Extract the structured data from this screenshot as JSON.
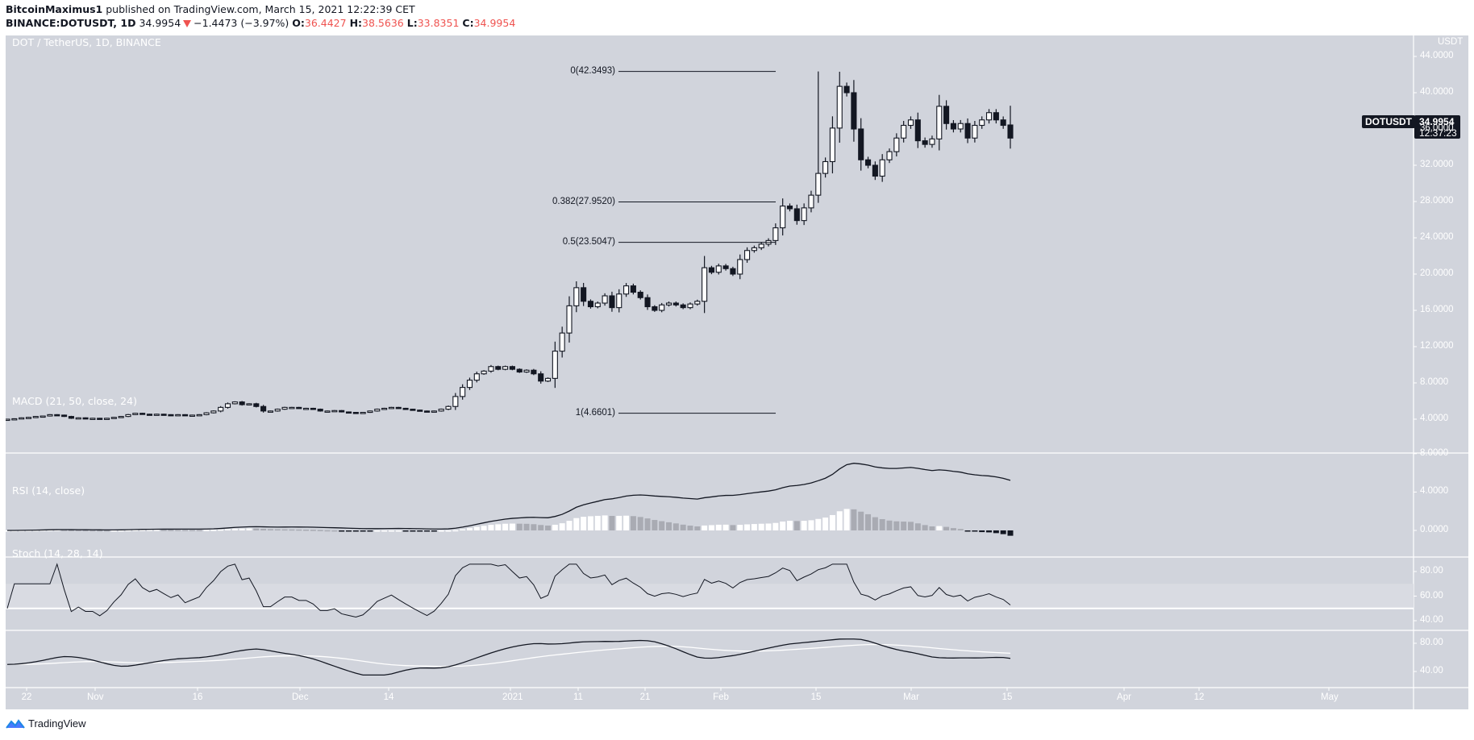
{
  "header": {
    "author": "BitcoinMaximus1",
    "published_text": "published on TradingView.com, March 15, 2021 12:22:39 CET",
    "symbol_line": "BINANCE:DOTUSDT, 1D",
    "last": "34.9954",
    "change": "−1.4473 (−3.97%)",
    "o_label": "O:",
    "o": "36.4427",
    "h_label": "H:",
    "h": "38.5636",
    "l_label": "L:",
    "l": "33.8351",
    "c_label": "C:",
    "c": "34.9954"
  },
  "colors": {
    "background": "#d1d4dc",
    "down": "#131722",
    "up": "#ffffff",
    "change_red": "#ef5350",
    "hist_light": "#ffffff",
    "hist_gray": "#a9abb3"
  },
  "main_pane": {
    "title": "DOT / TetherUS, 1D, BINANCE",
    "axis_unit": "USDT",
    "last_symbol": "DOTUSDT",
    "last_price": "34.9954",
    "countdown": "12:37:23"
  },
  "macd_pane": {
    "title": "MACD (21, 50, close, 24)",
    "ticks": [
      "8.0000",
      "4.0000",
      "0.0000"
    ]
  },
  "rsi_pane": {
    "title": "RSI (14, close)",
    "ticks": [
      "80.00",
      "60.00",
      "40.00"
    ]
  },
  "stoch_pane": {
    "title": "Stoch (14, 28, 14)",
    "ticks": [
      "80.00",
      "40.00"
    ]
  },
  "footer": {
    "brand": "TradingView"
  },
  "chart_data": {
    "type": "candlestick",
    "title": "DOT / TetherUS, 1D, BINANCE",
    "ylabel": "USDT",
    "ylim": [
      2,
      45
    ],
    "y_ticks": [
      "44.0000",
      "40.0000",
      "36.0000",
      "32.0000",
      "28.0000",
      "24.0000",
      "20.0000",
      "16.0000",
      "12.0000",
      "8.0000",
      "4.0000"
    ],
    "x_ticks": [
      "22",
      "Nov",
      "16",
      "Dec",
      "14",
      "2021",
      "11",
      "21",
      "Feb",
      "15",
      "Mar",
      "15",
      "Apr",
      "12",
      "May"
    ],
    "fib_levels": [
      {
        "label": "0(42.3493)",
        "value": 42.3493
      },
      {
        "label": "0.382(27.9520)",
        "value": 27.952
      },
      {
        "label": "0.5(23.5047)",
        "value": 23.5047
      },
      {
        "label": "1(4.6601)",
        "value": 4.6601
      }
    ],
    "closes_approx": [
      4.0,
      4.05,
      4.15,
      4.2,
      4.3,
      4.35,
      4.5,
      4.45,
      4.3,
      4.1,
      4.15,
      4.1,
      4.1,
      4.05,
      4.1,
      4.2,
      4.3,
      4.5,
      4.65,
      4.55,
      4.5,
      4.55,
      4.5,
      4.45,
      4.5,
      4.4,
      4.45,
      4.5,
      4.7,
      4.9,
      5.3,
      5.7,
      5.9,
      5.6,
      5.7,
      5.4,
      4.9,
      4.9,
      5.1,
      5.3,
      5.3,
      5.2,
      5.2,
      5.1,
      4.9,
      4.9,
      4.95,
      4.8,
      4.75,
      4.7,
      4.75,
      4.9,
      5.1,
      5.2,
      5.3,
      5.2,
      5.1,
      5.0,
      4.9,
      4.8,
      4.9,
      5.1,
      5.4,
      6.5,
      7.5,
      8.3,
      9.0,
      9.3,
      9.8,
      9.5,
      9.8,
      9.5,
      9.2,
      9.4,
      9.0,
      8.2,
      8.5,
      11.5,
      13.5,
      16.5,
      18.5,
      17.0,
      16.4,
      16.8,
      17.6,
      16.3,
      17.8,
      18.7,
      18.0,
      17.4,
      16.4,
      16.0,
      16.6,
      16.8,
      16.6,
      16.3,
      16.7,
      17.0,
      20.7,
      20.2,
      20.9,
      20.6,
      20.0,
      21.6,
      22.6,
      22.9,
      23.3,
      23.7,
      25.1,
      27.5,
      27.2,
      25.9,
      27.3,
      28.7,
      31.1,
      32.4,
      36.1,
      40.7,
      40.0,
      36.0,
      32.6,
      32.0,
      30.8,
      32.6,
      33.5,
      35.0,
      36.4,
      37.0,
      34.7,
      34.3,
      34.9,
      38.5,
      36.6,
      36.0,
      36.6,
      35.0,
      36.4,
      37.0,
      37.8,
      37.0,
      36.4,
      34.9955
    ],
    "macd_pane": {
      "ylim": [
        -0.5,
        8
      ],
      "macd_peak": 7.0,
      "last_macd": 5.3
    },
    "rsi_pane": {
      "ylim": [
        30,
        90
      ],
      "band": [
        50,
        70
      ]
    },
    "stoch_pane": {
      "ylim": [
        20,
        100
      ]
    }
  }
}
